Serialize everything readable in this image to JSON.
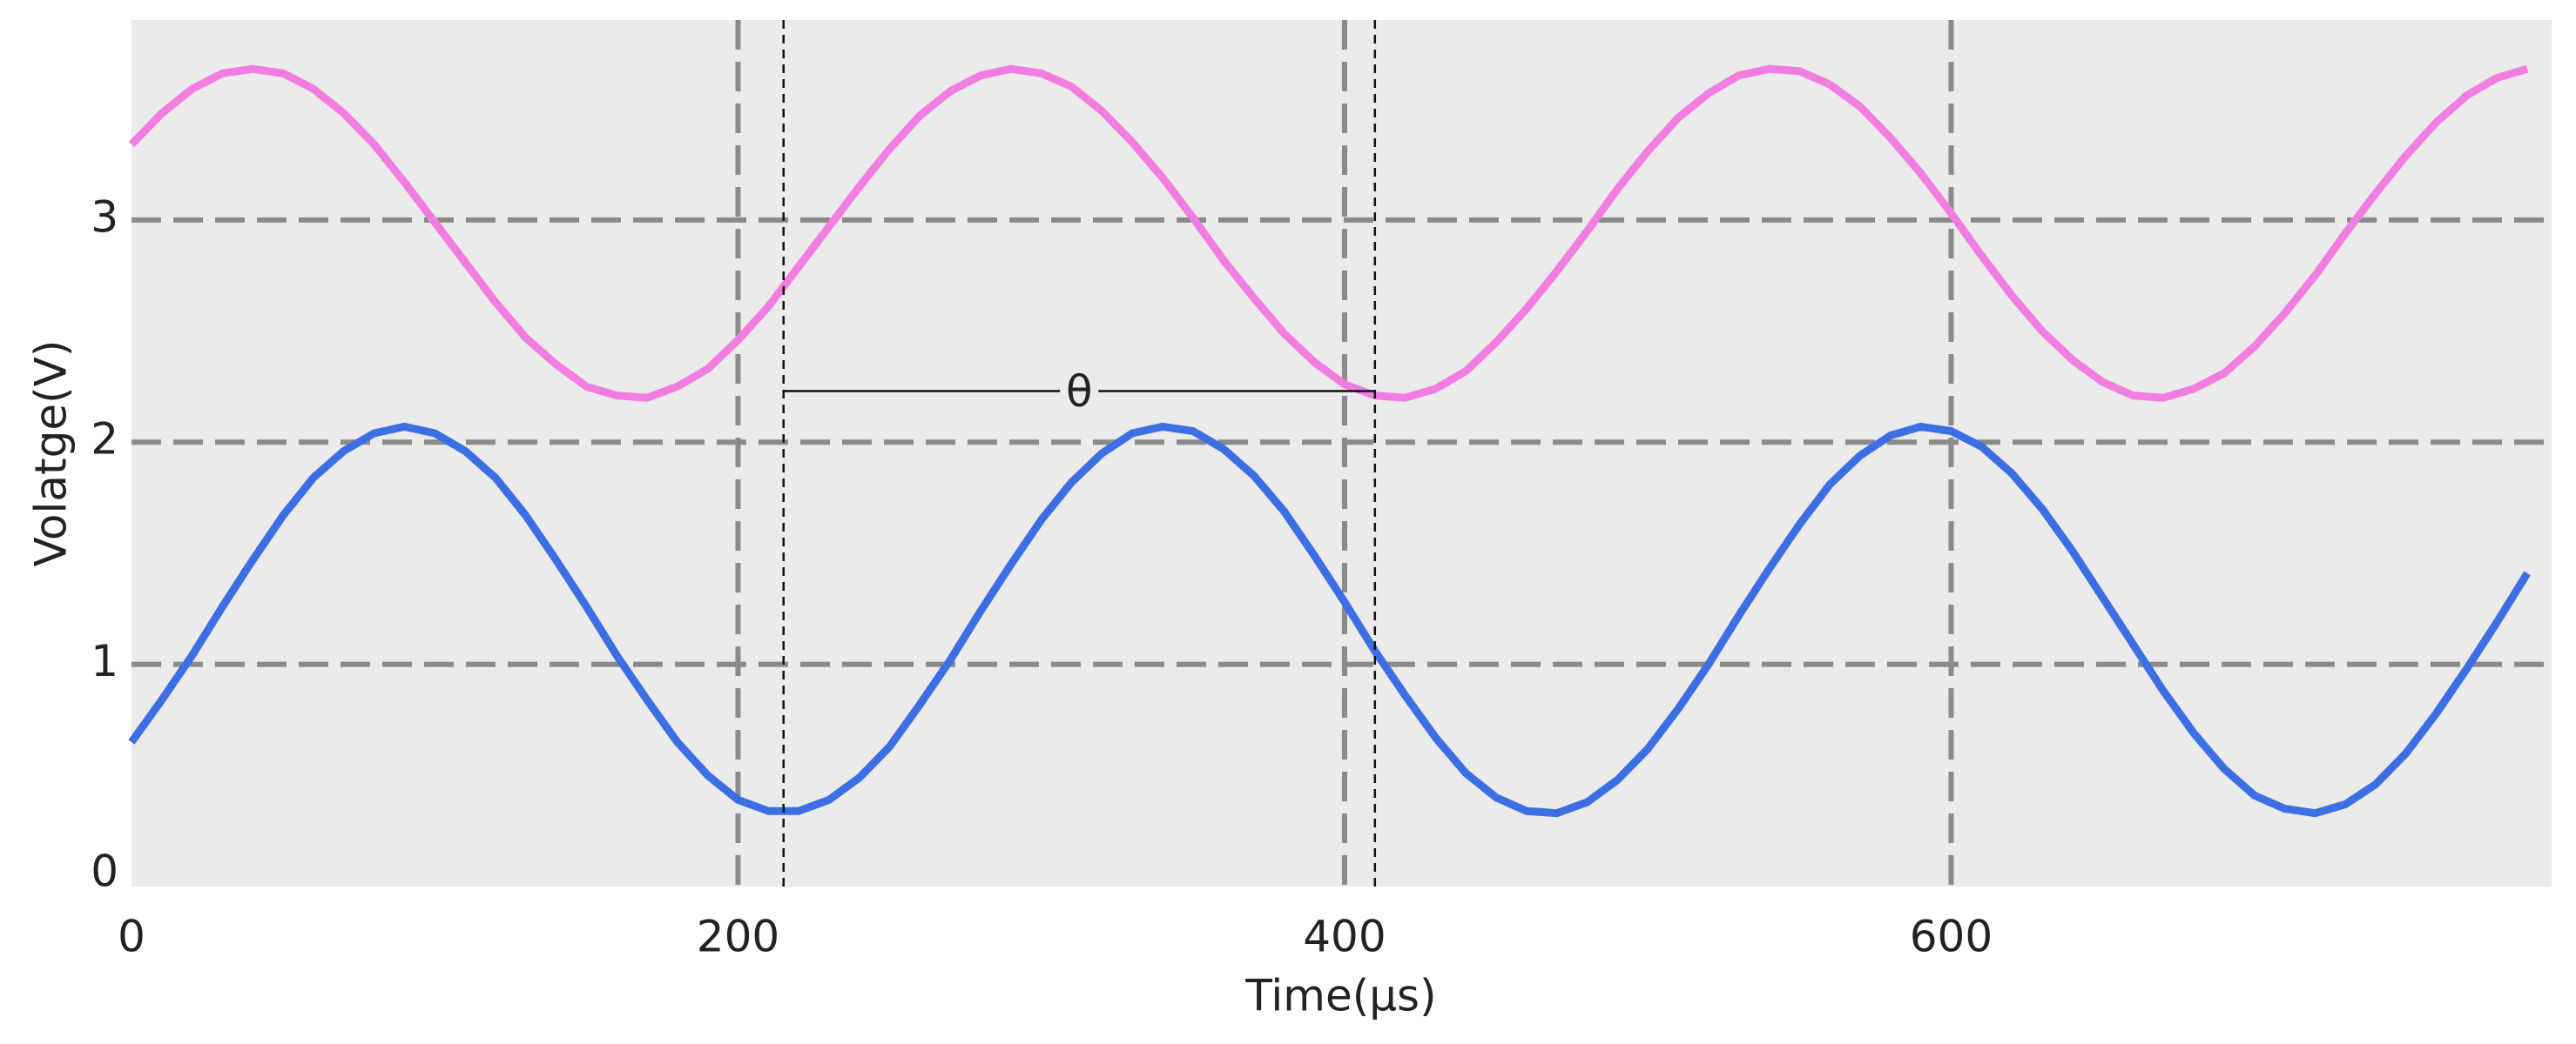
{
  "chart_data": {
    "type": "line",
    "x_label": "Time(μs)",
    "y_label": "Volatge(V)",
    "x": [
      0,
      10,
      20,
      30,
      40,
      50,
      60,
      70,
      80,
      90,
      100,
      110,
      120,
      130,
      140,
      150,
      160,
      170,
      180,
      190,
      200,
      210,
      220,
      230,
      240,
      250,
      260,
      270,
      280,
      290,
      300,
      310,
      320,
      330,
      340,
      350,
      360,
      370,
      380,
      390,
      400,
      410,
      420,
      430,
      440,
      450,
      460,
      470,
      480,
      490,
      500,
      510,
      520,
      530,
      540,
      550,
      560,
      570,
      580,
      590,
      600,
      610,
      620,
      630,
      640,
      650,
      660,
      670,
      680,
      690,
      700,
      710,
      720,
      730,
      740,
      750,
      760,
      770,
      780,
      790
    ],
    "series": [
      {
        "name": "pink",
        "color": "#f27de0",
        "values": [
          3.34,
          3.48,
          3.59,
          3.66,
          3.68,
          3.66,
          3.59,
          3.48,
          3.34,
          3.17,
          2.99,
          2.81,
          2.63,
          2.47,
          2.35,
          2.25,
          2.21,
          2.2,
          2.25,
          2.33,
          2.46,
          2.61,
          2.79,
          2.97,
          3.15,
          3.32,
          3.47,
          3.58,
          3.65,
          3.68,
          3.66,
          3.6,
          3.49,
          3.35,
          3.19,
          3.01,
          2.82,
          2.65,
          2.49,
          2.36,
          2.26,
          2.21,
          2.2,
          2.24,
          2.32,
          2.45,
          2.6,
          2.77,
          2.95,
          3.14,
          3.31,
          3.46,
          3.57,
          3.65,
          3.68,
          3.67,
          3.61,
          3.51,
          3.37,
          3.21,
          3.03,
          2.84,
          2.66,
          2.5,
          2.37,
          2.27,
          2.21,
          2.2,
          2.24,
          2.31,
          2.43,
          2.58,
          2.75,
          2.94,
          3.12,
          3.29,
          3.44,
          3.56,
          3.64,
          3.68
        ]
      },
      {
        "name": "blue",
        "color": "#3c6fe3",
        "values": [
          0.65,
          0.84,
          1.04,
          1.26,
          1.47,
          1.67,
          1.84,
          1.96,
          2.04,
          2.07,
          2.04,
          1.96,
          1.84,
          1.67,
          1.47,
          1.26,
          1.04,
          0.84,
          0.65,
          0.5,
          0.39,
          0.34,
          0.34,
          0.39,
          0.49,
          0.63,
          0.82,
          1.02,
          1.24,
          1.45,
          1.65,
          1.82,
          1.95,
          2.04,
          2.07,
          2.05,
          1.97,
          1.85,
          1.69,
          1.49,
          1.28,
          1.06,
          0.86,
          0.67,
          0.51,
          0.4,
          0.34,
          0.33,
          0.38,
          0.48,
          0.62,
          0.8,
          1.0,
          1.22,
          1.43,
          1.63,
          1.81,
          1.94,
          2.03,
          2.07,
          2.05,
          1.98,
          1.86,
          1.7,
          1.51,
          1.3,
          1.09,
          0.88,
          0.69,
          0.53,
          0.41,
          0.35,
          0.33,
          0.37,
          0.46,
          0.6,
          0.78,
          0.98,
          1.19,
          1.41
        ]
      }
    ],
    "xlim": [
      0,
      798
    ],
    "ylim": [
      0,
      3.9
    ],
    "xticks": [
      0,
      200,
      400,
      600
    ],
    "yticks": [
      0,
      1,
      2,
      3
    ],
    "grid": true,
    "marker": {
      "x": [
        215,
        410
      ],
      "y": 2.23,
      "label": "θ"
    }
  }
}
